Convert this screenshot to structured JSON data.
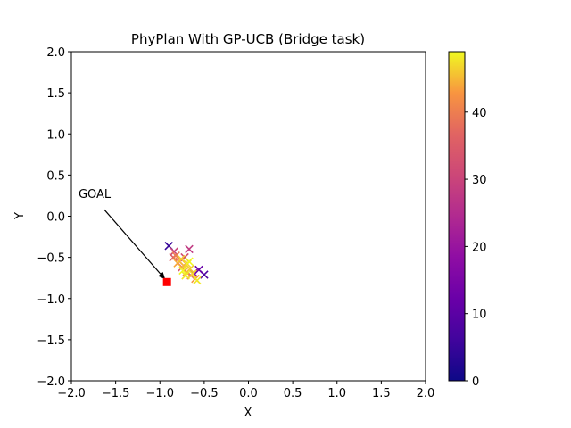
{
  "chart_data": {
    "type": "scatter",
    "title": "PhyPlan With GP-UCB (Bridge task)",
    "xlabel": "X",
    "ylabel": "Y",
    "xlim": [
      -2.0,
      2.0
    ],
    "ylim": [
      -2.0,
      2.0
    ],
    "x_ticks": [
      "−2.0",
      "−1.5",
      "−1.0",
      "−0.5",
      "0.0",
      "0.5",
      "1.0",
      "1.5",
      "2.0"
    ],
    "y_ticks": [
      "−2.0",
      "−1.5",
      "−1.0",
      "−0.5",
      "0.0",
      "0.5",
      "1.0",
      "1.5",
      "2.0"
    ],
    "grid": false,
    "colormap": "plasma",
    "colorbar": {
      "range": [
        0,
        49
      ],
      "ticks": [
        "0",
        "10",
        "20",
        "30",
        "40"
      ],
      "tick_values": [
        0,
        10,
        20,
        30,
        40
      ]
    },
    "goal": {
      "label": "GOAL",
      "x": -0.92,
      "y": -0.8,
      "color": "#ff0000",
      "text_x": -1.92,
      "text_y": 0.22
    },
    "points": [
      {
        "x": -0.9,
        "y": -0.36,
        "c": 5
      },
      {
        "x": -0.5,
        "y": -0.71,
        "c": 8
      },
      {
        "x": -0.56,
        "y": -0.65,
        "c": 12
      },
      {
        "x": -0.62,
        "y": -0.69,
        "c": 18
      },
      {
        "x": -0.67,
        "y": -0.4,
        "c": 28
      },
      {
        "x": -0.84,
        "y": -0.43,
        "c": 30
      },
      {
        "x": -0.72,
        "y": -0.5,
        "c": 32
      },
      {
        "x": -0.75,
        "y": -0.62,
        "c": 34
      },
      {
        "x": -0.85,
        "y": -0.5,
        "c": 36
      },
      {
        "x": -0.65,
        "y": -0.72,
        "c": 38
      },
      {
        "x": -0.82,
        "y": -0.48,
        "c": 40
      },
      {
        "x": -0.78,
        "y": -0.55,
        "c": 41
      },
      {
        "x": -0.7,
        "y": -0.68,
        "c": 42
      },
      {
        "x": -0.6,
        "y": -0.76,
        "c": 43
      },
      {
        "x": -0.8,
        "y": -0.57,
        "c": 44
      },
      {
        "x": -0.73,
        "y": -0.6,
        "c": 45
      },
      {
        "x": -0.66,
        "y": -0.64,
        "c": 46
      },
      {
        "x": -0.76,
        "y": -0.52,
        "c": 46
      },
      {
        "x": -0.69,
        "y": -0.58,
        "c": 47
      },
      {
        "x": -0.63,
        "y": -0.7,
        "c": 47
      },
      {
        "x": -0.71,
        "y": -0.72,
        "c": 48
      },
      {
        "x": -0.58,
        "y": -0.78,
        "c": 48
      },
      {
        "x": -0.74,
        "y": -0.66,
        "c": 49
      },
      {
        "x": -0.67,
        "y": -0.55,
        "c": 49
      }
    ]
  }
}
